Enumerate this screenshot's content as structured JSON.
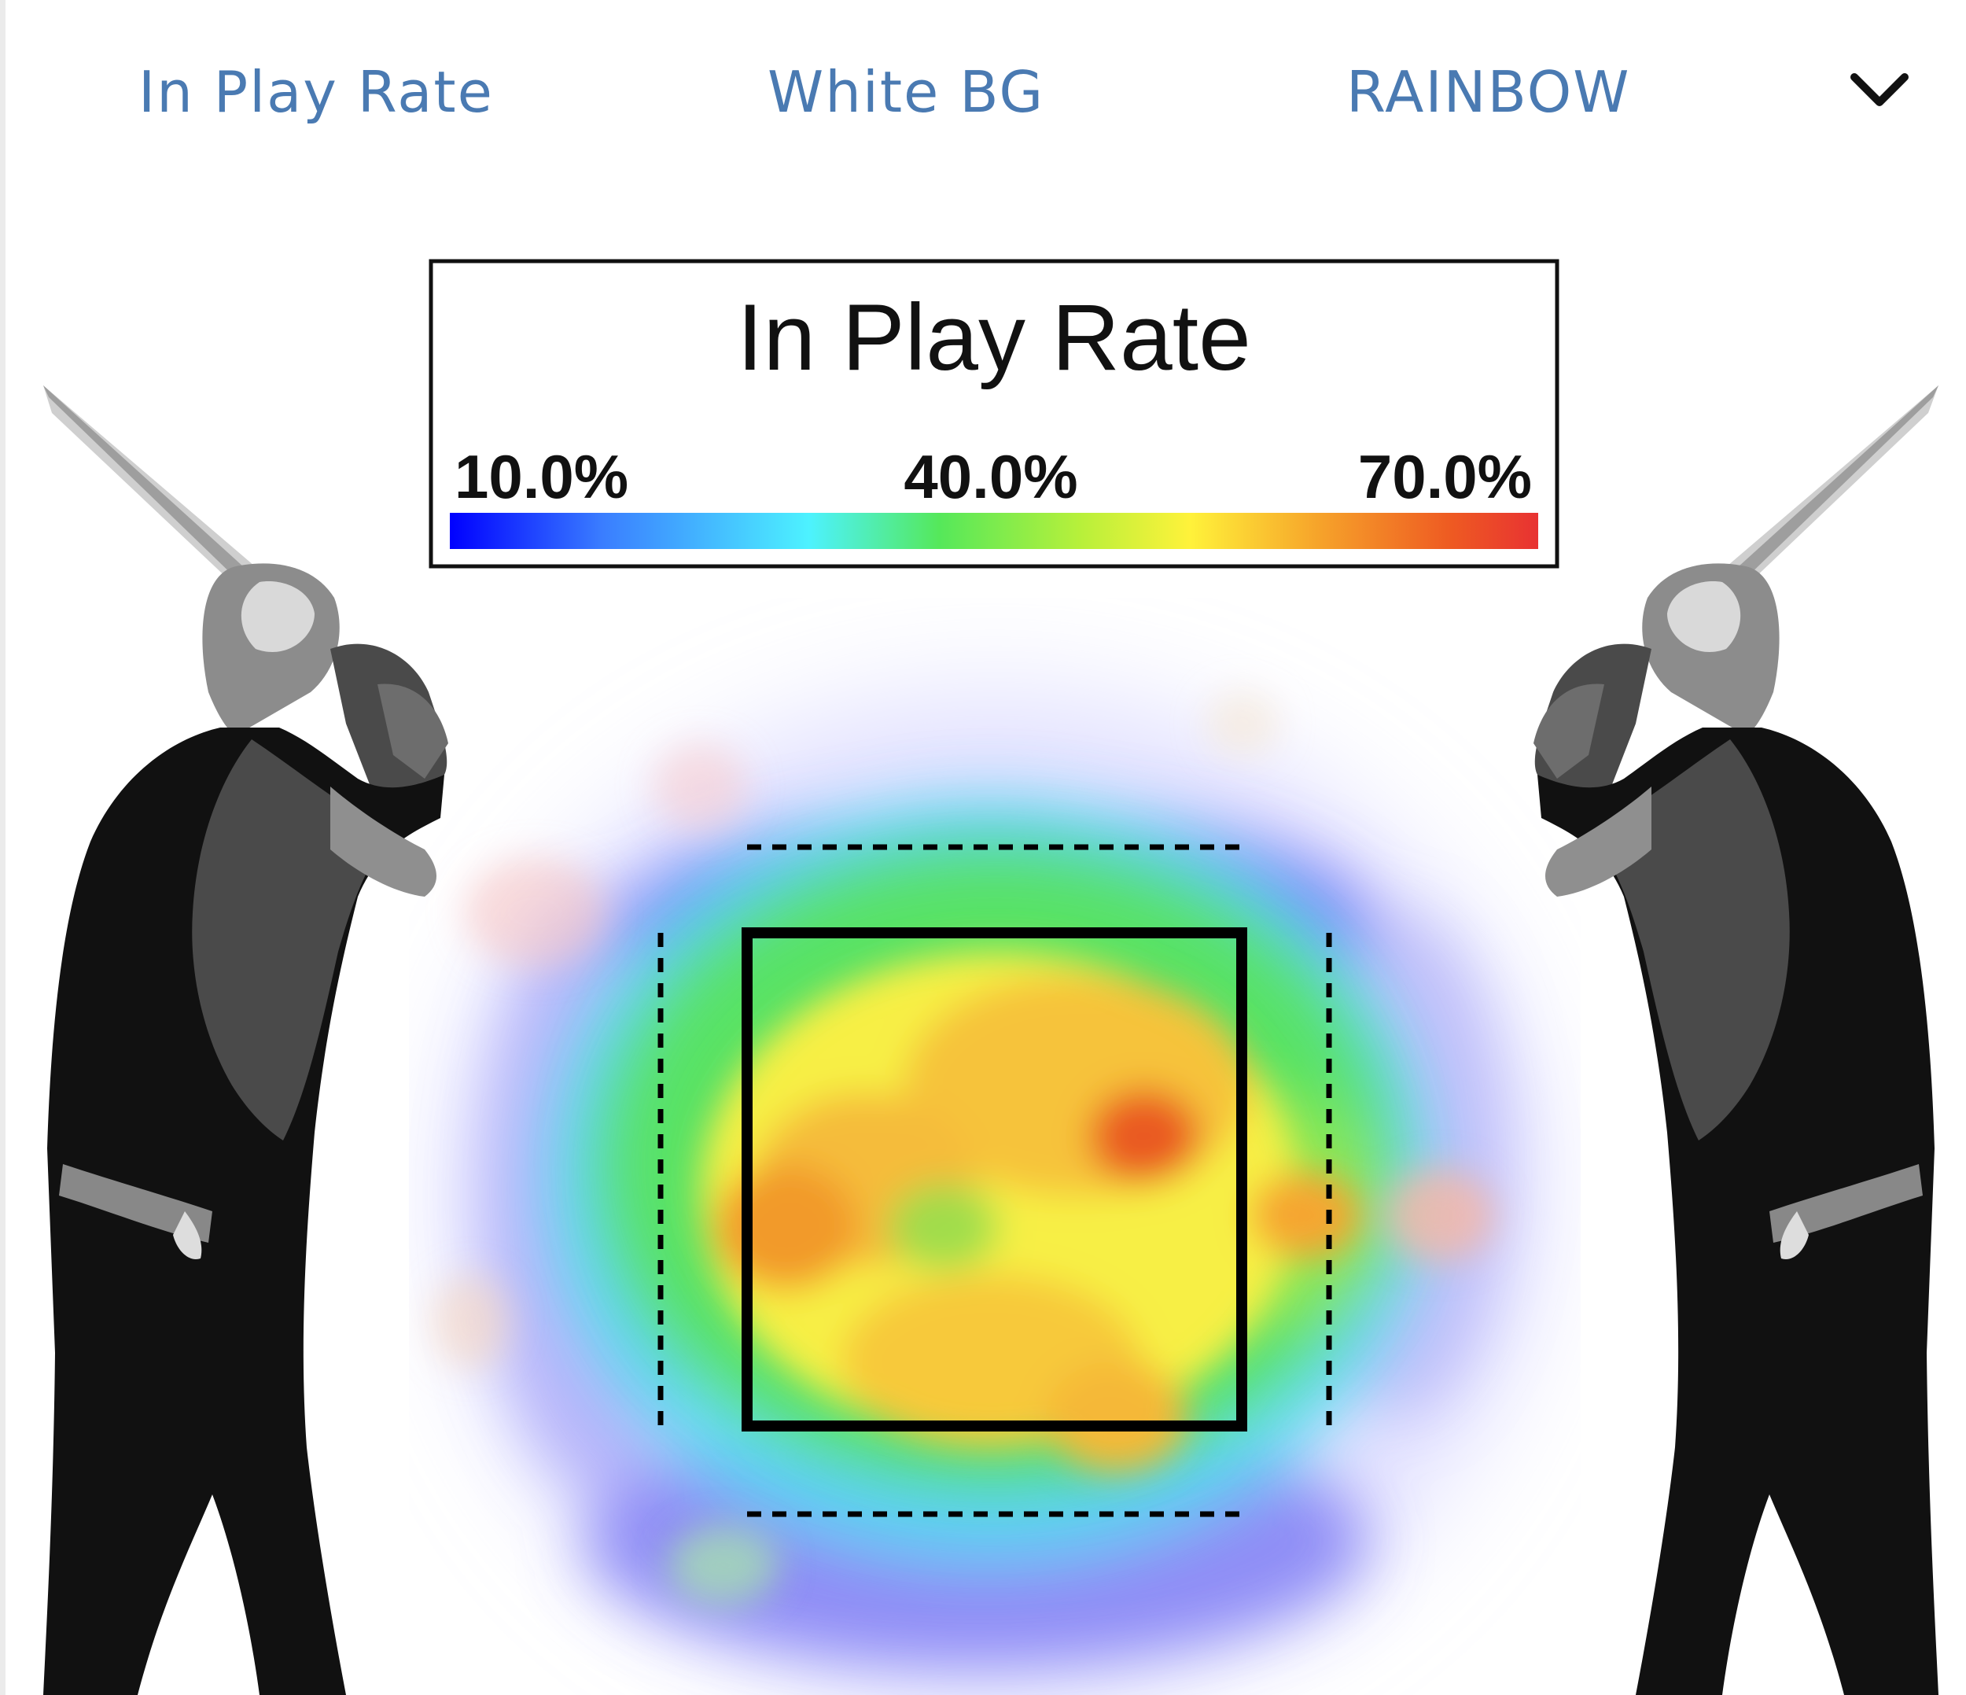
{
  "toolbar": {
    "metric_label": "In Play Rate",
    "background_label": "White BG",
    "palette_label": "RAINBOW",
    "menu_icon": "chevron-down-icon"
  },
  "legend": {
    "title": "In Play Rate",
    "tick_min": "10.0%",
    "tick_mid": "40.0%",
    "tick_max": "70.0%",
    "palette": [
      "#0000ff",
      "#3a7dff",
      "#4df2ff",
      "#55e85a",
      "#b8f03a",
      "#fff23a",
      "#f6a22a",
      "#ee5a22",
      "#e83232"
    ]
  },
  "colors": {
    "toolbar_text": "#4a7ab2",
    "chevron": "#111111",
    "strike_zone": "#000000",
    "batter_silhouette": "#111111"
  },
  "figures": {
    "left_batter": "batter-silhouette-left",
    "right_batter": "batter-silhouette-right"
  }
}
